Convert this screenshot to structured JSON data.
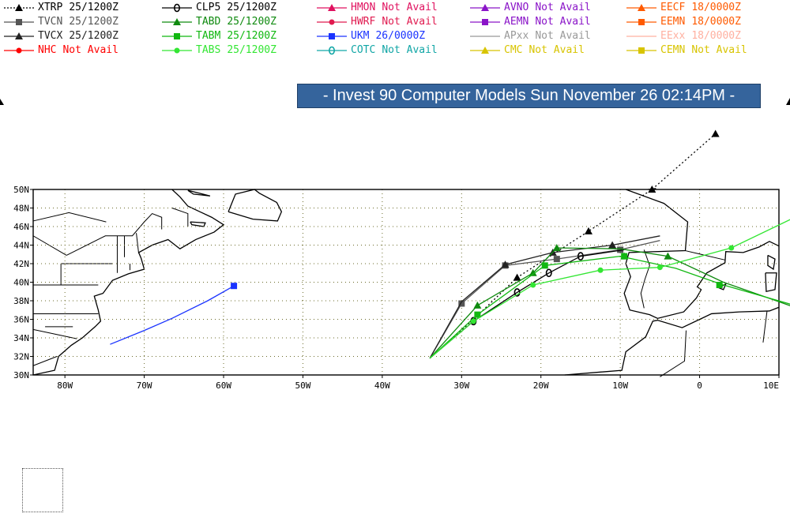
{
  "title": "- Invest 90 Computer Models Sun November 26 02:14PM -",
  "legend": [
    {
      "id": "xtrp",
      "name": "XTRP",
      "time": "25/1200Z",
      "color": "#000000",
      "marker": "triangle",
      "line": "dotted"
    },
    {
      "id": "tvcn",
      "name": "TVCN",
      "time": "25/1200Z",
      "color": "#555555",
      "marker": "square",
      "line": "solid"
    },
    {
      "id": "tvcx",
      "name": "TVCX",
      "time": "25/1200Z",
      "color": "#222222",
      "marker": "triangle",
      "line": "solid"
    },
    {
      "id": "nhc",
      "name": "NHC",
      "time": "Not Avail",
      "color": "#ff0000",
      "marker": "circle",
      "line": "solid"
    },
    {
      "id": "clp5",
      "name": "CLP5",
      "time": "25/1200Z",
      "color": "#000000",
      "marker": "zero",
      "line": "solid"
    },
    {
      "id": "tabd",
      "name": "TABD",
      "time": "25/1200Z",
      "color": "#0f8a0f",
      "marker": "triangle",
      "line": "solid"
    },
    {
      "id": "tabm",
      "name": "TABM",
      "time": "25/1200Z",
      "color": "#11b811",
      "marker": "square",
      "line": "solid"
    },
    {
      "id": "tabs",
      "name": "TABS",
      "time": "25/1200Z",
      "color": "#33e633",
      "marker": "circle",
      "line": "solid"
    },
    {
      "id": "hmon",
      "name": "HMON",
      "time": "Not Avail",
      "color": "#e0115f",
      "marker": "triangle",
      "line": "solid"
    },
    {
      "id": "hwrf",
      "name": "HWRF",
      "time": "Not Avail",
      "color": "#e01a4f",
      "marker": "circle",
      "line": "solid"
    },
    {
      "id": "ukm",
      "name": "UKM",
      "time": "26/0000Z",
      "color": "#1a33ff",
      "marker": "square",
      "line": "solid"
    },
    {
      "id": "cotc",
      "name": "COTC",
      "time": "Not Avail",
      "color": "#11a6a6",
      "marker": "zero",
      "line": "solid"
    },
    {
      "id": "avno",
      "name": "AVNO",
      "time": "Not Avail",
      "color": "#8a14c8",
      "marker": "triangle",
      "line": "solid"
    },
    {
      "id": "aemn",
      "name": "AEMN",
      "time": "Not Avail",
      "color": "#8a14c8",
      "marker": "square",
      "line": "solid"
    },
    {
      "id": "apxx",
      "name": "APxx",
      "time": "Not Avail",
      "color": "#999999",
      "marker": "none",
      "line": "solid"
    },
    {
      "id": "cmc",
      "name": "CMC",
      "time": "Not Avail",
      "color": "#d8c400",
      "marker": "triangle",
      "line": "solid"
    },
    {
      "id": "eecf",
      "name": "EECF",
      "time": "18/0000Z",
      "color": "#ff5a00",
      "marker": "triangle",
      "line": "solid"
    },
    {
      "id": "eemn",
      "name": "EEMN",
      "time": "18/0000Z",
      "color": "#ff5a00",
      "marker": "square",
      "line": "solid"
    },
    {
      "id": "eexx",
      "name": "EExx",
      "time": "18/0000Z",
      "color": "#ffb0a0",
      "marker": "none",
      "line": "solid"
    },
    {
      "id": "cemn",
      "name": "CEMN",
      "time": "Not Avail",
      "color": "#d8c400",
      "marker": "square",
      "line": "solid"
    }
  ],
  "map": {
    "lon_range": [
      -84,
      10
    ],
    "lat_range": [
      30,
      50
    ],
    "lat_ticks": [
      "30N",
      "32N",
      "34N",
      "36N",
      "38N",
      "40N",
      "42N",
      "44N",
      "46N",
      "48N",
      "50N"
    ],
    "lon_ticks": [
      "80W",
      "70W",
      "60W",
      "50W",
      "40W",
      "30W",
      "20W",
      "10W",
      "0",
      "10E"
    ],
    "grid": "dotted"
  },
  "tracks": [
    {
      "model": "xtrp",
      "color": "#000000",
      "dash": "2,3",
      "marker": "triangle",
      "points": [
        [
          -34,
          31.8
        ],
        [
          -28.5,
          36
        ],
        [
          -23,
          40.5
        ],
        [
          -14,
          45.5
        ],
        [
          -6,
          50
        ],
        [
          2,
          56
        ]
      ],
      "marked": [
        [
          -23,
          40.5
        ],
        [
          -14,
          45.5
        ],
        [
          -6,
          50
        ],
        [
          2,
          56
        ]
      ]
    },
    {
      "model": "tvcn",
      "color": "#555555",
      "marker": "square",
      "points": [
        [
          -34,
          31.8
        ],
        [
          -30,
          37.7
        ],
        [
          -24.5,
          41.8
        ],
        [
          -18,
          42.5
        ],
        [
          -10,
          43.5
        ],
        [
          -5,
          44.5
        ]
      ],
      "marked": [
        [
          -30,
          37.7
        ],
        [
          -24.5,
          41.8
        ],
        [
          -18,
          42.5
        ],
        [
          -10,
          43.5
        ]
      ]
    },
    {
      "model": "tvcx",
      "color": "#222222",
      "marker": "triangle",
      "points": [
        [
          -34,
          31.8
        ],
        [
          -30,
          37.9
        ],
        [
          -24.5,
          41.9
        ],
        [
          -18.5,
          43.2
        ],
        [
          -11,
          44
        ],
        [
          -5,
          45
        ]
      ],
      "marked": [
        [
          -24.5,
          41.9
        ],
        [
          -18.5,
          43.2
        ],
        [
          -11,
          44
        ]
      ]
    },
    {
      "model": "clp5",
      "color": "#000000",
      "marker": "zero",
      "points": [
        [
          -34,
          31.8
        ],
        [
          -28.5,
          35.8
        ],
        [
          -23,
          38.9
        ],
        [
          -19,
          41
        ],
        [
          -15,
          42.8
        ],
        [
          -9.5,
          43.5
        ]
      ],
      "marked": [
        [
          -28.5,
          35.8
        ],
        [
          -23,
          38.9
        ],
        [
          -19,
          41
        ],
        [
          -15,
          42.8
        ]
      ]
    },
    {
      "model": "tabd",
      "color": "#0f8a0f",
      "marker": "triangle",
      "points": [
        [
          -34,
          31.8
        ],
        [
          -28,
          37.5
        ],
        [
          -21,
          41
        ],
        [
          -18,
          43.7
        ],
        [
          -10,
          43.6
        ],
        [
          -4,
          42.8
        ],
        [
          3,
          40
        ],
        [
          13,
          37
        ]
      ],
      "marked": [
        [
          -28,
          37.5
        ],
        [
          -21,
          41
        ],
        [
          -18,
          43.7
        ],
        [
          -9.5,
          42.8
        ],
        [
          -4,
          42.8
        ]
      ]
    },
    {
      "model": "tabm",
      "color": "#11b811",
      "marker": "square",
      "points": [
        [
          -34,
          31.8
        ],
        [
          -28,
          36.5
        ],
        [
          -19.5,
          41.8
        ],
        [
          -10,
          42.8
        ],
        [
          -3,
          41.5
        ],
        [
          3,
          39.7
        ],
        [
          12,
          37.5
        ]
      ],
      "marked": [
        [
          -28,
          36.5
        ],
        [
          -19.5,
          41.8
        ],
        [
          -9.5,
          42.8
        ],
        [
          2.5,
          39.7
        ]
      ]
    },
    {
      "model": "tabs",
      "color": "#33e633",
      "marker": "circle",
      "points": [
        [
          -34,
          31.8
        ],
        [
          -28.5,
          35.8
        ],
        [
          -21,
          39.7
        ],
        [
          -12.5,
          41.3
        ],
        [
          -5,
          41.6
        ],
        [
          4,
          43.7
        ],
        [
          12,
          47
        ]
      ],
      "marked": [
        [
          -28.5,
          35.8
        ],
        [
          -21,
          39.7
        ],
        [
          -12.5,
          41.3
        ],
        [
          -5,
          41.6
        ],
        [
          4,
          43.7
        ]
      ]
    },
    {
      "model": "ukm",
      "color": "#1a33ff",
      "marker": "square",
      "points": [
        [
          -74.3,
          33.3
        ],
        [
          -70,
          34.8
        ],
        [
          -66.5,
          36.1
        ],
        [
          -62,
          38
        ],
        [
          -58.7,
          39.6
        ]
      ],
      "marked": [
        [
          -58.7,
          39.6
        ]
      ]
    }
  ]
}
